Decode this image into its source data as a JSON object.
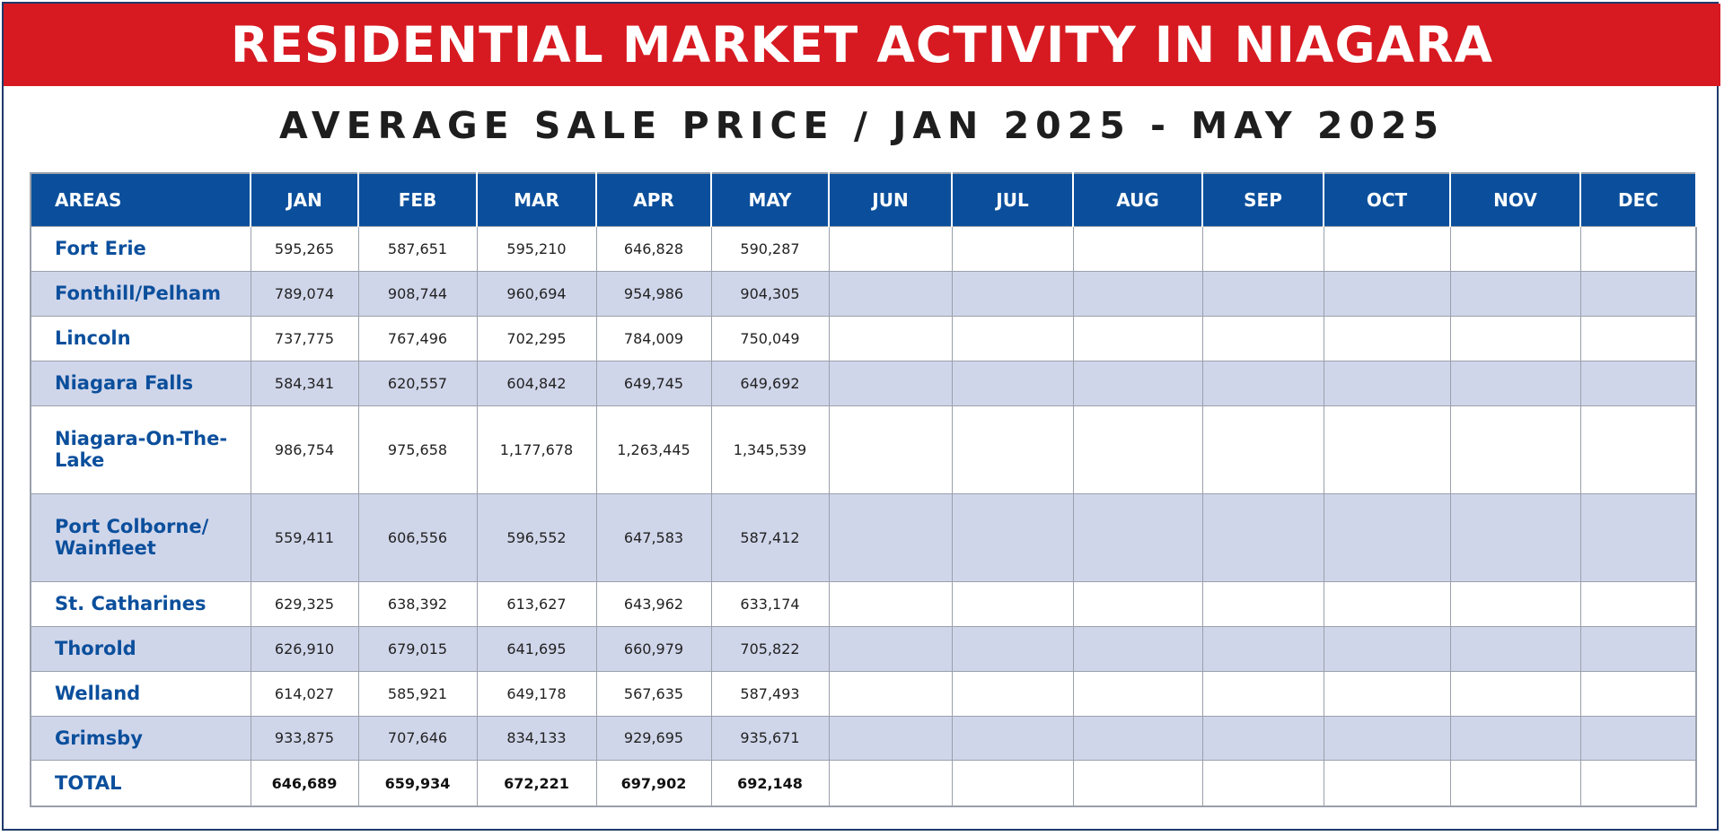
{
  "banner": {
    "title": "RESIDENTIAL MARKET ACTIVITY IN NIAGARA"
  },
  "subtitle": "AVERAGE SALE PRICE / JAN 2025 - MAY 2025",
  "colors": {
    "banner": "#d71a21",
    "header": "#0b4f9c",
    "alt_row": "#d0d6ea",
    "area_text": "#0b4f9c"
  },
  "table": {
    "headers": [
      "AREAS",
      "JAN",
      "FEB",
      "MAR",
      "APR",
      "MAY",
      "JUN",
      "JUL",
      "AUG",
      "SEP",
      "OCT",
      "NOV",
      "DEC"
    ],
    "rows": [
      {
        "area": "Fort Erie",
        "values": [
          "595,265",
          "587,651",
          "595,210",
          "646,828",
          "590,287",
          "",
          "",
          "",
          "",
          "",
          "",
          ""
        ]
      },
      {
        "area": "Fonthill/Pelham",
        "values": [
          "789,074",
          "908,744",
          "960,694",
          "954,986",
          "904,305",
          "",
          "",
          "",
          "",
          "",
          "",
          ""
        ]
      },
      {
        "area": "Lincoln",
        "values": [
          "737,775",
          "767,496",
          "702,295",
          "784,009",
          "750,049",
          "",
          "",
          "",
          "",
          "",
          "",
          ""
        ]
      },
      {
        "area": "Niagara Falls",
        "values": [
          "584,341",
          "620,557",
          "604,842",
          "649,745",
          "649,692",
          "",
          "",
          "",
          "",
          "",
          "",
          ""
        ]
      },
      {
        "area": "Niagara-On-The-Lake",
        "values": [
          "986,754",
          "975,658",
          "1,177,678",
          "1,263,445",
          "1,345,539",
          "",
          "",
          "",
          "",
          "",
          "",
          ""
        ]
      },
      {
        "area": "Port Colborne/ Wainfleet",
        "values": [
          "559,411",
          "606,556",
          "596,552",
          "647,583",
          "587,412",
          "",
          "",
          "",
          "",
          "",
          "",
          ""
        ]
      },
      {
        "area": "St. Catharines",
        "values": [
          "629,325",
          "638,392",
          "613,627",
          "643,962",
          "633,174",
          "",
          "",
          "",
          "",
          "",
          "",
          ""
        ]
      },
      {
        "area": "Thorold",
        "values": [
          "626,910",
          "679,015",
          "641,695",
          "660,979",
          "705,822",
          "",
          "",
          "",
          "",
          "",
          "",
          ""
        ]
      },
      {
        "area": "Welland",
        "values": [
          "614,027",
          "585,921",
          "649,178",
          "567,635",
          "587,493",
          "",
          "",
          "",
          "",
          "",
          "",
          ""
        ]
      },
      {
        "area": "Grimsby",
        "values": [
          "933,875",
          "707,646",
          "834,133",
          "929,695",
          "935,671",
          "",
          "",
          "",
          "",
          "",
          "",
          ""
        ]
      }
    ],
    "total": {
      "area": "TOTAL",
      "values": [
        "646,689",
        "659,934",
        "672,221",
        "697,902",
        "692,148",
        "",
        "",
        "",
        "",
        "",
        "",
        ""
      ]
    }
  }
}
